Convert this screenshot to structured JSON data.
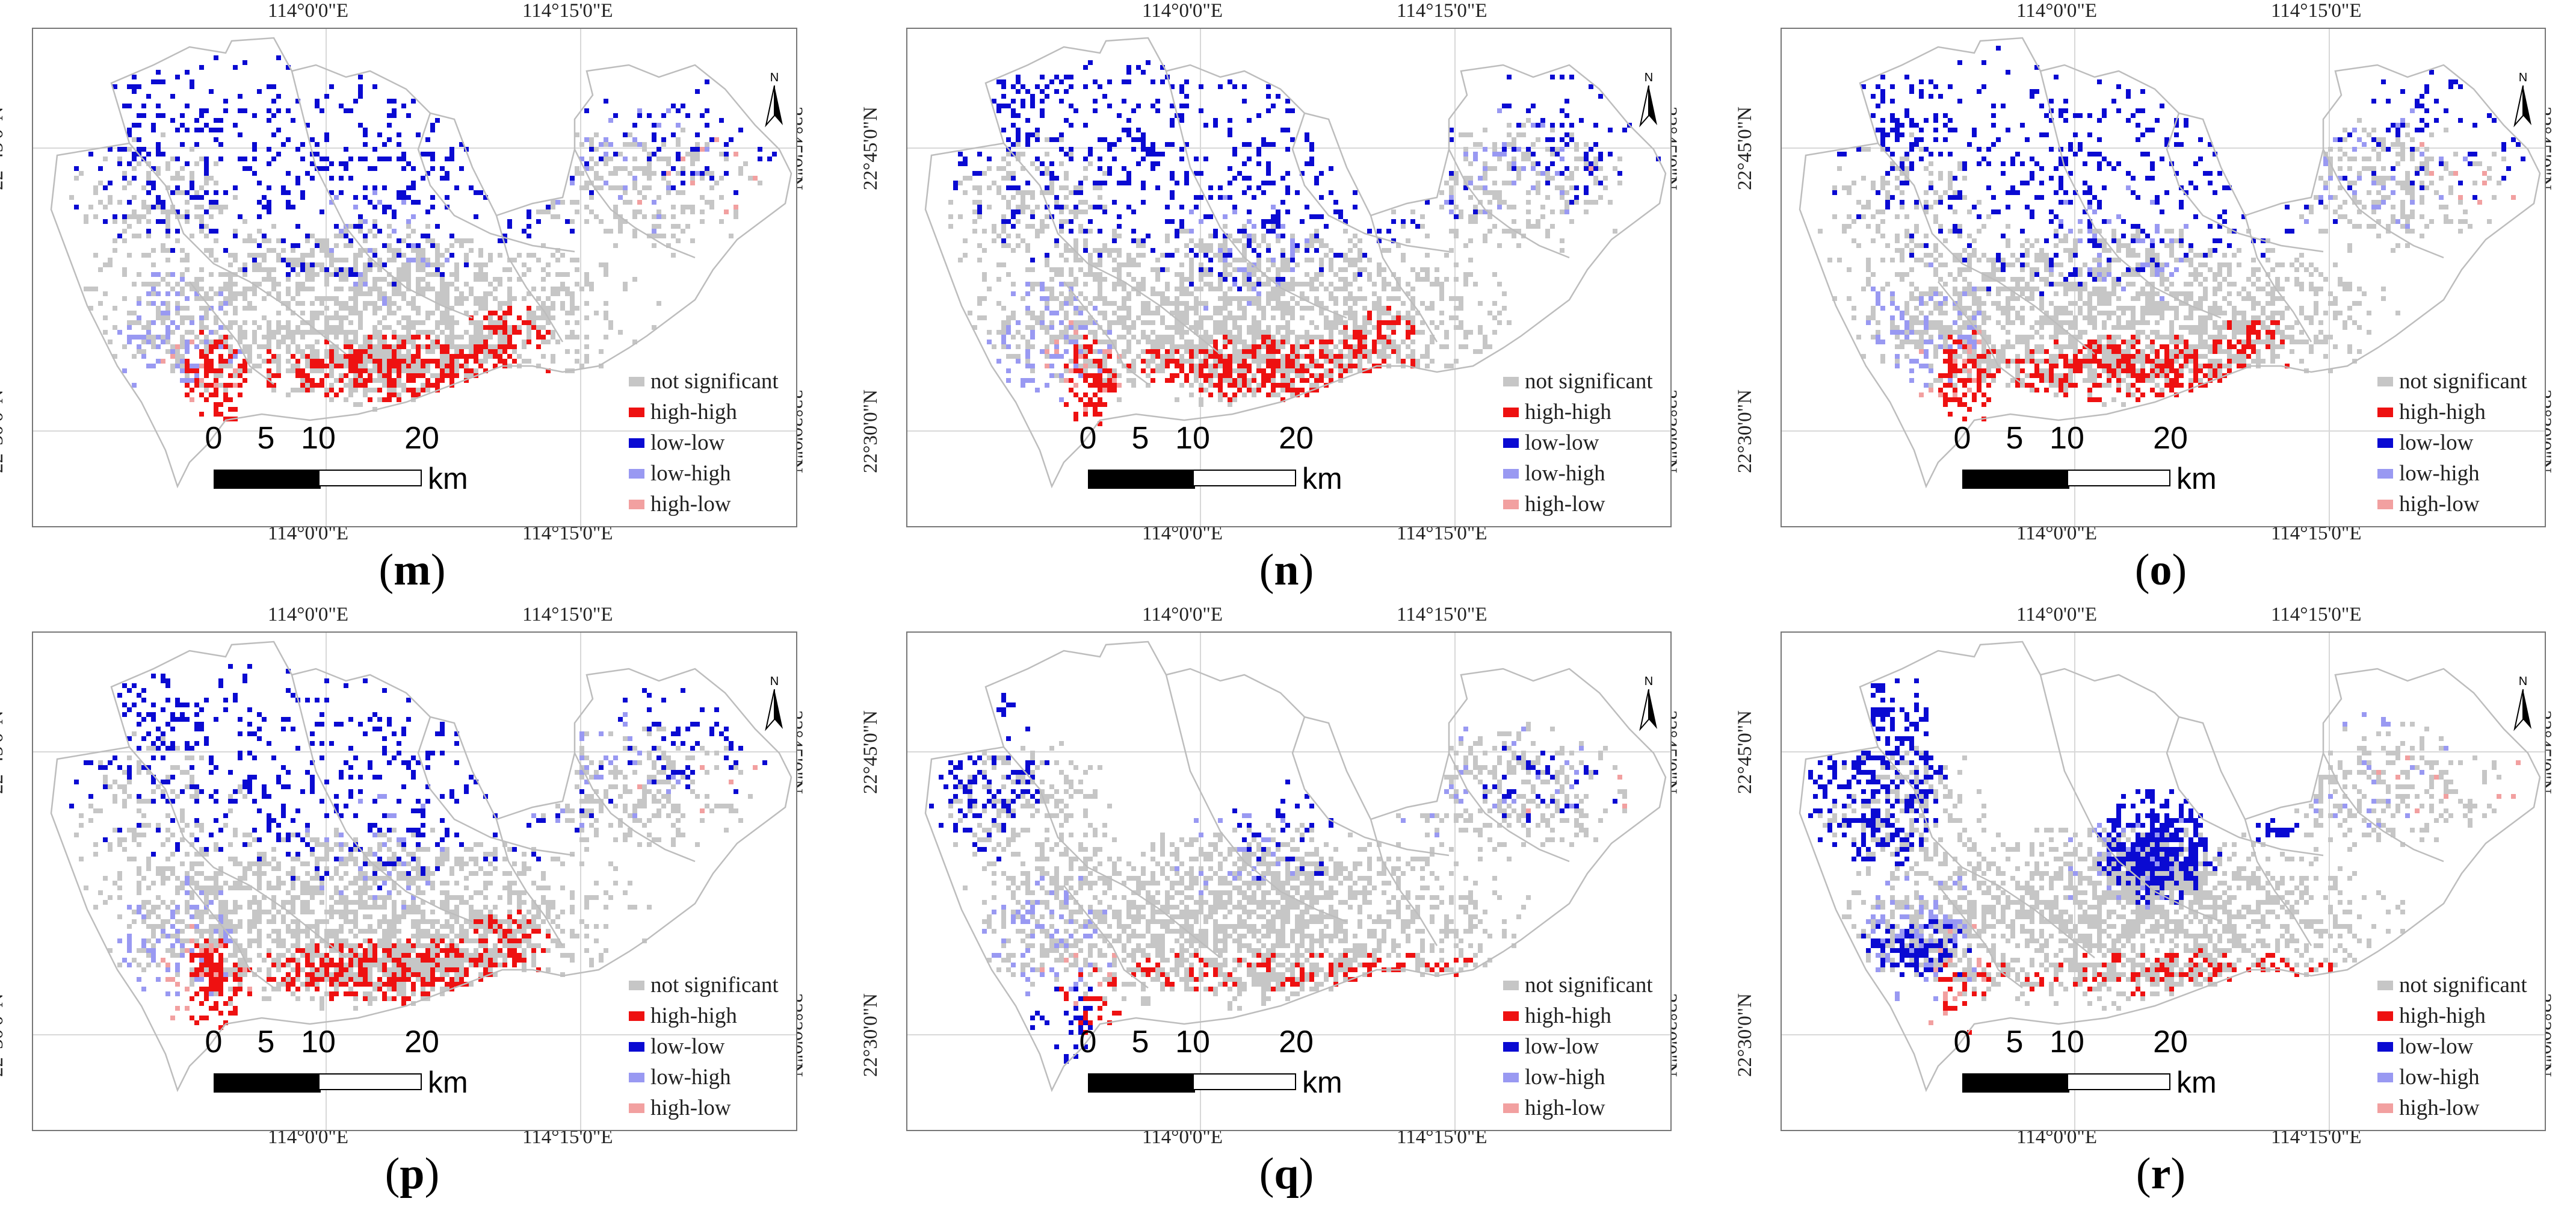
{
  "figure": {
    "lon_labels": [
      "114°0'0\"E",
      "114°15'0\"E"
    ],
    "lat_labels": [
      "22°45'0\"N",
      "22°30'0\"N"
    ],
    "north_label": "N",
    "scale": {
      "ticks": [
        "0",
        "5",
        "10",
        "20"
      ],
      "unit": "km"
    },
    "legend": [
      {
        "label": "not significant",
        "color": "#c6c6c6"
      },
      {
        "label": "high-high",
        "color": "#ee1111"
      },
      {
        "label": "low-low",
        "color": "#0a0ad2"
      },
      {
        "label": "low-high",
        "color": "#9999f2"
      },
      {
        "label": "high-low",
        "color": "#f2a0a0"
      }
    ]
  },
  "panels": [
    {
      "id": "m",
      "label_open": "(",
      "letter": "m",
      "label_close": ")",
      "density": {
        "grey": 1.0,
        "blue": 1.0,
        "red": 1.0,
        "lightblue": 0.7,
        "pink": 0.4
      },
      "blue_pattern": "north-scattered"
    },
    {
      "id": "n",
      "label_open": "(",
      "letter": "n",
      "label_close": ")",
      "density": {
        "grey": 1.0,
        "blue": 1.1,
        "red": 0.9,
        "lightblue": 0.6,
        "pink": 0.4
      },
      "blue_pattern": "north-scattered"
    },
    {
      "id": "o",
      "label_open": "(",
      "letter": "o",
      "label_close": ")",
      "density": {
        "grey": 1.0,
        "blue": 1.0,
        "red": 0.9,
        "lightblue": 0.8,
        "pink": 0.6
      },
      "blue_pattern": "north-scattered"
    },
    {
      "id": "p",
      "label_open": "(",
      "letter": "p",
      "label_close": ")",
      "density": {
        "grey": 1.0,
        "blue": 1.0,
        "red": 1.0,
        "lightblue": 0.8,
        "pink": 0.5
      },
      "blue_pattern": "north-scattered"
    },
    {
      "id": "q",
      "label_open": "(",
      "letter": "q",
      "label_close": ")",
      "density": {
        "grey": 1.1,
        "blue": 0.8,
        "red": 0.8,
        "lightblue": 0.6,
        "pink": 0.4
      },
      "blue_pattern": "west-clusters"
    },
    {
      "id": "r",
      "label_open": "(",
      "letter": "r",
      "label_close": ")",
      "density": {
        "grey": 1.0,
        "blue": 1.0,
        "red": 0.8,
        "lightblue": 0.6,
        "pink": 0.4
      },
      "blue_pattern": "central-cluster"
    }
  ]
}
